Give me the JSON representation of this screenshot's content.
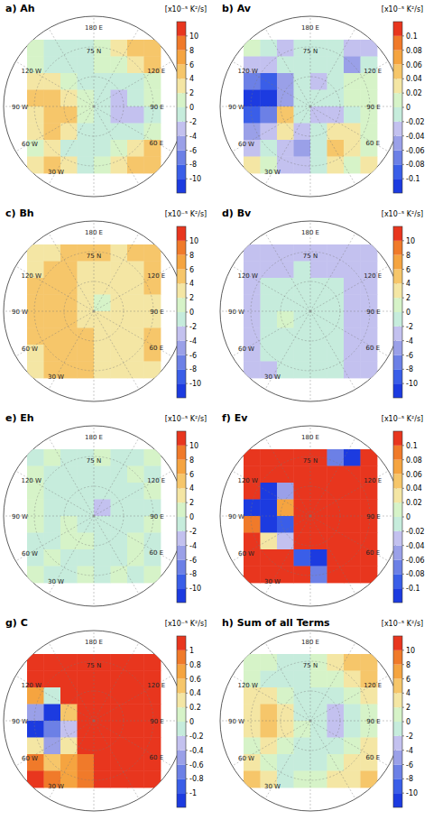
{
  "chart_data": [
    {
      "type": "heatmap",
      "title": "a) Ah",
      "colorbar_label": "[x10⁻⁵ K²/s]",
      "colorbar_range": [
        -12,
        12
      ],
      "colorbar_ticks": [
        -10,
        -8,
        -6,
        -4,
        -2,
        0,
        2,
        4,
        6,
        8,
        10
      ],
      "cells": [
        [
          0,
          -1,
          -1,
          -1,
          1,
          3,
          5,
          5
        ],
        [
          1,
          -1,
          -2,
          -1,
          0,
          1,
          3,
          4
        ],
        [
          3,
          3,
          1,
          -1,
          -2,
          -2,
          -1,
          1
        ],
        [
          4,
          5,
          3,
          0,
          -2,
          -3,
          -2,
          0
        ],
        [
          3,
          5,
          4,
          1,
          -1,
          -3,
          -3,
          -1
        ],
        [
          2,
          4,
          3,
          -1,
          -2,
          -2,
          -1,
          1
        ],
        [
          1,
          2,
          -1,
          -2,
          -1,
          1,
          3,
          4
        ],
        [
          3,
          5,
          2,
          -1,
          0,
          2,
          4,
          5
        ]
      ]
    },
    {
      "type": "heatmap",
      "title": "b) Av",
      "colorbar_label": "[x10⁻⁵ K²/s]",
      "colorbar_range": [
        -0.12,
        0.12
      ],
      "colorbar_ticks": [
        -0.1,
        -0.08,
        -0.06,
        -0.04,
        -0.02,
        0,
        0.02,
        0.04,
        0.06,
        0.08,
        0.1
      ],
      "cells": [
        [
          0.01,
          -0.02,
          -0.03,
          -0.02,
          -0.01,
          -0.02,
          -0.04,
          -0.03
        ],
        [
          -0.03,
          -0.04,
          -0.02,
          -0.01,
          -0.02,
          -0.01,
          -0.05,
          -0.02
        ],
        [
          -0.08,
          -0.1,
          -0.05,
          -0.02,
          -0.03,
          -0.01,
          0.01,
          0.01
        ],
        [
          -0.12,
          -0.11,
          -0.06,
          -0.01,
          -0.02,
          -0.01,
          0.01,
          0
        ],
        [
          -0.1,
          -0.08,
          0.04,
          -0.02,
          -0.03,
          -0.03,
          -0.01,
          0.01
        ],
        [
          -0.06,
          -0.04,
          0.03,
          -0.04,
          -0.02,
          0.02,
          0.03,
          0.01
        ],
        [
          -0.03,
          -0.01,
          -0.03,
          -0.05,
          -0.02,
          0.04,
          0.03,
          0.01
        ],
        [
          0.02,
          0.01,
          -0.04,
          -0.03,
          -0.02,
          0.02,
          0.01,
          0.02
        ]
      ]
    },
    {
      "type": "heatmap",
      "title": "c) Bh",
      "colorbar_label": "[x10⁻⁵ K²/s]",
      "colorbar_range": [
        -12,
        12
      ],
      "colorbar_ticks": [
        -10,
        -8,
        -6,
        -4,
        -2,
        0,
        2,
        4,
        6,
        8,
        10
      ],
      "cells": [
        [
          3,
          3,
          4,
          4,
          4,
          3,
          4,
          4
        ],
        [
          3,
          4,
          4,
          3,
          3,
          3,
          3,
          4
        ],
        [
          4,
          4,
          4,
          3,
          2,
          2,
          3,
          4
        ],
        [
          4,
          5,
          4,
          2,
          1,
          2,
          3,
          3
        ],
        [
          4,
          5,
          4,
          3,
          2,
          3,
          3,
          3
        ],
        [
          4,
          4,
          4,
          4,
          3,
          3,
          3,
          4
        ],
        [
          3,
          4,
          4,
          5,
          3,
          3,
          3,
          4
        ],
        [
          3,
          4,
          4,
          4,
          3,
          2,
          3,
          3
        ]
      ]
    },
    {
      "type": "heatmap",
      "title": "d) Bv",
      "colorbar_label": "[x10⁻⁵ K²/s]",
      "colorbar_range": [
        -12,
        12
      ],
      "colorbar_ticks": [
        -10,
        -8,
        -6,
        -4,
        -2,
        0,
        2,
        4,
        6,
        8,
        10
      ],
      "cells": [
        [
          -3,
          -3,
          -3,
          -3,
          -3,
          -3,
          -3,
          -3
        ],
        [
          -3,
          -3,
          -3,
          -2,
          -3,
          -3,
          -3,
          -3
        ],
        [
          -3,
          -2,
          -2,
          -2,
          -2,
          -2,
          -3,
          -3
        ],
        [
          -3,
          -1,
          -1,
          -2,
          -2,
          -2,
          -3,
          -3
        ],
        [
          -3,
          -1,
          0,
          -1,
          -2,
          -2,
          -3,
          -3
        ],
        [
          -3,
          -2,
          -1,
          -1,
          -2,
          -2,
          -3,
          -3
        ],
        [
          -3,
          -2,
          -2,
          -2,
          -2,
          -2,
          -3,
          -3
        ],
        [
          -3,
          -3,
          -2,
          -2,
          -2,
          -2,
          -3,
          -3
        ]
      ]
    },
    {
      "type": "heatmap",
      "title": "e) Eh",
      "colorbar_label": "[x10⁻⁵ K²/s]",
      "colorbar_range": [
        -12,
        12
      ],
      "colorbar_ticks": [
        -10,
        -8,
        -6,
        -4,
        -2,
        0,
        2,
        4,
        6,
        8,
        10
      ],
      "cells": [
        [
          -1,
          0,
          -1,
          -1,
          0,
          -1,
          -1,
          0
        ],
        [
          0,
          -1,
          -1,
          -1,
          -2,
          -1,
          0,
          -1
        ],
        [
          0,
          -1,
          -1,
          -2,
          -2,
          -1,
          -1,
          0
        ],
        [
          0,
          -1,
          -1,
          -1,
          -3,
          -2,
          -1,
          -1
        ],
        [
          0,
          -1,
          0,
          -1,
          -2,
          -1,
          -1,
          0
        ],
        [
          -1,
          -1,
          0,
          0,
          -1,
          -1,
          0,
          -1
        ],
        [
          -1,
          0,
          -1,
          -1,
          -1,
          -1,
          0,
          -1
        ],
        [
          0,
          -1,
          -1,
          0,
          -1,
          0,
          -1,
          0
        ]
      ]
    },
    {
      "type": "heatmap",
      "title": "f) Ev",
      "colorbar_label": "[x10⁻⁵ K²/s]",
      "colorbar_range": [
        -0.12,
        0.12
      ],
      "colorbar_ticks": [
        -0.1,
        -0.08,
        -0.06,
        -0.04,
        -0.02,
        0,
        0.02,
        0.04,
        0.06,
        0.08,
        0.1
      ],
      "cells": [
        [
          0.12,
          0.12,
          0.11,
          0.12,
          0.12,
          -0.08,
          -0.11,
          0.12
        ],
        [
          0.11,
          0.12,
          0.12,
          0.12,
          0.12,
          0.12,
          0.11,
          0.12
        ],
        [
          0.12,
          -0.11,
          -0.05,
          0.12,
          0.12,
          0.12,
          0.12,
          0.12
        ],
        [
          -0.12,
          -0.12,
          0.06,
          0.12,
          0.12,
          0.12,
          0.12,
          0.12
        ],
        [
          0.08,
          -0.11,
          -0.1,
          0.12,
          0.12,
          0.12,
          0.12,
          0.12
        ],
        [
          0.12,
          0.03,
          -0.04,
          0.12,
          0.12,
          0.12,
          0.12,
          0.12
        ],
        [
          0.12,
          0.12,
          0.12,
          -0.1,
          -0.12,
          0.12,
          0.12,
          0.12
        ],
        [
          0.1,
          0.12,
          0.12,
          0.12,
          -0.08,
          0.12,
          0.12,
          0.12
        ]
      ]
    },
    {
      "type": "heatmap",
      "title": "g) C",
      "colorbar_label": "[x10⁻⁵ K²/s]",
      "colorbar_range": [
        -1.2,
        1.2
      ],
      "colorbar_ticks": [
        -1,
        -0.8,
        -0.6,
        -0.4,
        -0.2,
        0,
        0.2,
        0.4,
        0.6,
        0.8,
        1
      ],
      "cells": [
        [
          1.2,
          1.2,
          1.2,
          1.2,
          1.2,
          1.2,
          1.2,
          1.2
        ],
        [
          1.2,
          1.1,
          1.2,
          1.2,
          1.2,
          1.2,
          1.2,
          1.2
        ],
        [
          0.6,
          -0.2,
          1.2,
          1.2,
          1.2,
          1.2,
          1.2,
          1.2
        ],
        [
          -0.5,
          -1.2,
          0.4,
          1.2,
          1.2,
          1.2,
          1.2,
          1.2
        ],
        [
          -1.2,
          -0.8,
          -0.3,
          1.1,
          1.2,
          1.2,
          1.2,
          1.2
        ],
        [
          0.3,
          -0.6,
          0.2,
          1,
          1.2,
          1.2,
          1.2,
          1.2
        ],
        [
          0.8,
          0.4,
          0.6,
          0.9,
          1.2,
          1.2,
          1.2,
          1.2
        ],
        [
          1,
          0.8,
          0.6,
          0.8,
          1,
          1.2,
          1.2,
          1.2
        ]
      ]
    },
    {
      "type": "heatmap",
      "title": "h) Sum of all Terms",
      "colorbar_label": "[x10⁻⁵ K²/s]",
      "colorbar_range": [
        -12,
        12
      ],
      "colorbar_ticks": [
        -10,
        -8,
        -6,
        -4,
        -2,
        0,
        2,
        4,
        6,
        8,
        10
      ],
      "cells": [
        [
          0,
          1,
          -1,
          -1,
          1,
          3,
          4,
          5
        ],
        [
          1,
          -1,
          -2,
          -1,
          0,
          1,
          3,
          4
        ],
        [
          2,
          3,
          0,
          -1,
          -2,
          -2,
          0,
          2
        ],
        [
          3,
          4,
          2,
          -1,
          -2,
          -3,
          -1,
          1
        ],
        [
          2,
          4,
          3,
          0,
          -2,
          -3,
          -2,
          0
        ],
        [
          1,
          3,
          1,
          -2,
          -2,
          -1,
          0,
          2
        ],
        [
          3,
          1,
          -2,
          -1,
          -1,
          1,
          3,
          3
        ],
        [
          4,
          3,
          -1,
          0,
          1,
          2,
          3,
          4
        ]
      ]
    }
  ],
  "map_labels": [
    "180 E",
    "75 N",
    "120 W",
    "90 W",
    "60 W",
    "30 W",
    "60 E",
    "90 E",
    "120 E"
  ]
}
